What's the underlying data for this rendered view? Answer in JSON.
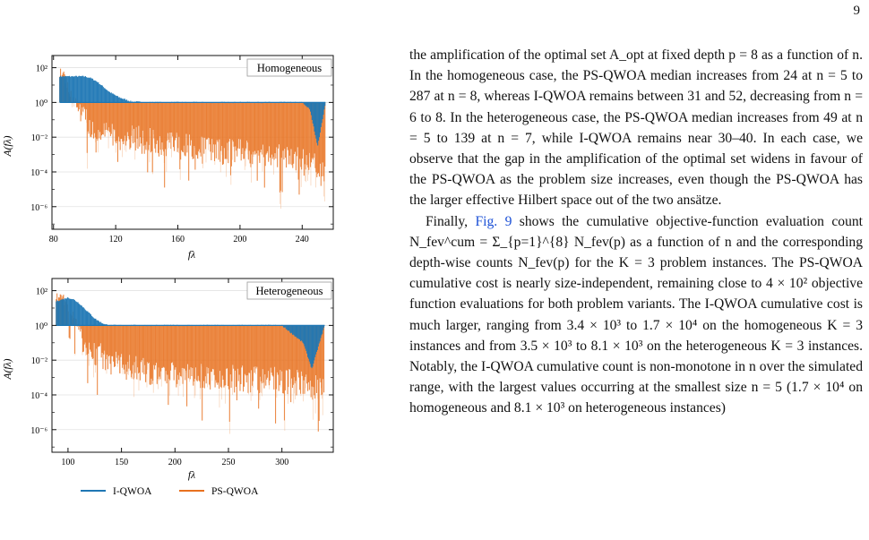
{
  "page": {
    "number": "9"
  },
  "figure": {
    "panels": [
      {
        "label": "Homogeneous",
        "xlabel": "fλ",
        "ylabel": "A(fλ)",
        "xticks": [
          "80",
          "120",
          "160",
          "200",
          "240"
        ],
        "yticks": [
          "10²",
          "10⁰",
          "10⁻²",
          "10⁻⁴",
          "10⁻⁶"
        ]
      },
      {
        "label": "Heterogeneous",
        "xlabel": "fλ",
        "ylabel": "A(fλ)",
        "xticks": [
          "100",
          "150",
          "200",
          "250",
          "300"
        ],
        "yticks": [
          "10²",
          "10⁰",
          "10⁻²",
          "10⁻⁴",
          "10⁻⁶"
        ]
      }
    ],
    "legend": [
      {
        "label": "I-QWOA",
        "color": "#1f77b4"
      },
      {
        "label": "PS-QWOA",
        "color": "#e8711f"
      }
    ]
  },
  "chart_data": [
    {
      "type": "area",
      "label": "Homogeneous",
      "xlabel": "fλ",
      "ylabel": "A(fλ)",
      "xlim": [
        79,
        260
      ],
      "ylim_log10": [
        -7.3,
        2.7
      ],
      "yscale": "log",
      "series": [
        {
          "name": "I-QWOA",
          "color": "#1f77b4",
          "x": [
            84,
            90,
            95,
            100,
            104,
            108,
            112,
            116,
            122,
            130,
            140,
            150,
            160,
            170,
            180,
            190,
            200,
            210,
            220,
            230,
            240,
            245,
            250,
            255
          ],
          "log10_y": [
            1.5,
            1.5,
            1.5,
            1.5,
            1.4,
            1.2,
            0.9,
            0.6,
            0.3,
            0.05,
            0,
            0,
            0,
            0,
            0,
            0,
            0,
            0,
            0,
            0,
            0,
            -0.4,
            -2.5,
            0
          ]
        },
        {
          "name": "PS-QWOA",
          "color": "#e8711f",
          "x": [
            84,
            86,
            88,
            92,
            96,
            100,
            104,
            110,
            116,
            124,
            132,
            140,
            150,
            160,
            170,
            180,
            190,
            200,
            210,
            220,
            230,
            240,
            250,
            255
          ],
          "log10_y": [
            2.0,
            2.1,
            1.5,
            0.6,
            0.1,
            -0.3,
            -0.6,
            -0.9,
            -1.0,
            -1.2,
            -1.3,
            -1.4,
            -1.6,
            -1.7,
            -1.9,
            -2.0,
            -2.1,
            -2.1,
            -2.2,
            -2.2,
            -2.4,
            -2.6,
            -2.8,
            -3.0
          ]
        }
      ]
    },
    {
      "type": "area",
      "label": "Heterogeneous",
      "xlabel": "fλ",
      "ylabel": "A(fλ)",
      "xlim": [
        85,
        348
      ],
      "ylim_log10": [
        -7.3,
        2.7
      ],
      "yscale": "log",
      "series": [
        {
          "name": "I-QWOA",
          "color": "#1f77b4",
          "x": [
            89,
            95,
            100,
            105,
            110,
            115,
            120,
            125,
            130,
            135,
            140,
            150,
            200,
            250,
            300,
            320,
            328,
            336,
            340
          ],
          "log10_y": [
            1.4,
            1.5,
            1.6,
            1.5,
            1.3,
            1.0,
            0.7,
            0.4,
            0.2,
            0.05,
            0,
            0,
            0,
            0,
            0,
            -1.0,
            -2.5,
            -0.8,
            0
          ]
        },
        {
          "name": "PS-QWOA",
          "color": "#e8711f",
          "x": [
            89,
            92,
            95,
            100,
            105,
            110,
            115,
            120,
            130,
            140,
            150,
            160,
            180,
            200,
            220,
            240,
            260,
            280,
            300,
            320,
            330,
            340
          ],
          "log10_y": [
            1.8,
            2.1,
            1.9,
            1.4,
            0.8,
            0.3,
            -0.2,
            -0.6,
            -1.0,
            -1.3,
            -1.5,
            -1.7,
            -1.9,
            -2.0,
            -2.1,
            -2.2,
            -2.3,
            -2.3,
            -2.4,
            -2.6,
            -2.8,
            -2.6
          ]
        }
      ]
    }
  ],
  "text": {
    "p1": "the amplification of the optimal set A_opt at fixed depth p = 8 as a function of n. In the homogeneous case, the PS-QWOA median increases from 24 at n = 5 to 287 at n = 8, whereas I-QWOA remains between 31 and 52, decreasing from n = 6 to 8. In the heterogeneous case, the PS-QWOA median increases from 49 at n = 5 to 139 at n = 7, while I-QWOA remains near 30–40. In each case, we observe that the gap in the amplification of the optimal set widens in favour of the PS-QWOA as the problem size increases, even though the PS-QWOA has the larger effective Hilbert space out of the two ansätze.",
    "p2_start": "Finally, ",
    "p2_link": "Fig. 9",
    "p2_rest": " shows the cumulative objective-function evaluation count N_fev^cum = Σ_{p=1}^{8} N_fev(p) as a function of n and the corresponding depth-wise counts N_fev(p) for the K = 3 problem instances. The PS-QWOA cumulative cost is nearly size-independent, remaining close to 4 × 10² objective function evaluations for both problem variants. The I-QWOA cumulative cost is much larger, ranging from 3.4 × 10³ to 1.7 × 10⁴ on the homogeneous K = 3 instances and from 3.5 × 10³ to 8.1 × 10³ on the heterogeneous K = 3 instances. Notably, the I-QWOA cumulative count is non-monotone in n over the simulated range, with the largest values occurring at the smallest size n = 5 (1.7 × 10⁴ on homogeneous and 8.1 × 10³ on heterogeneous instances)"
  }
}
